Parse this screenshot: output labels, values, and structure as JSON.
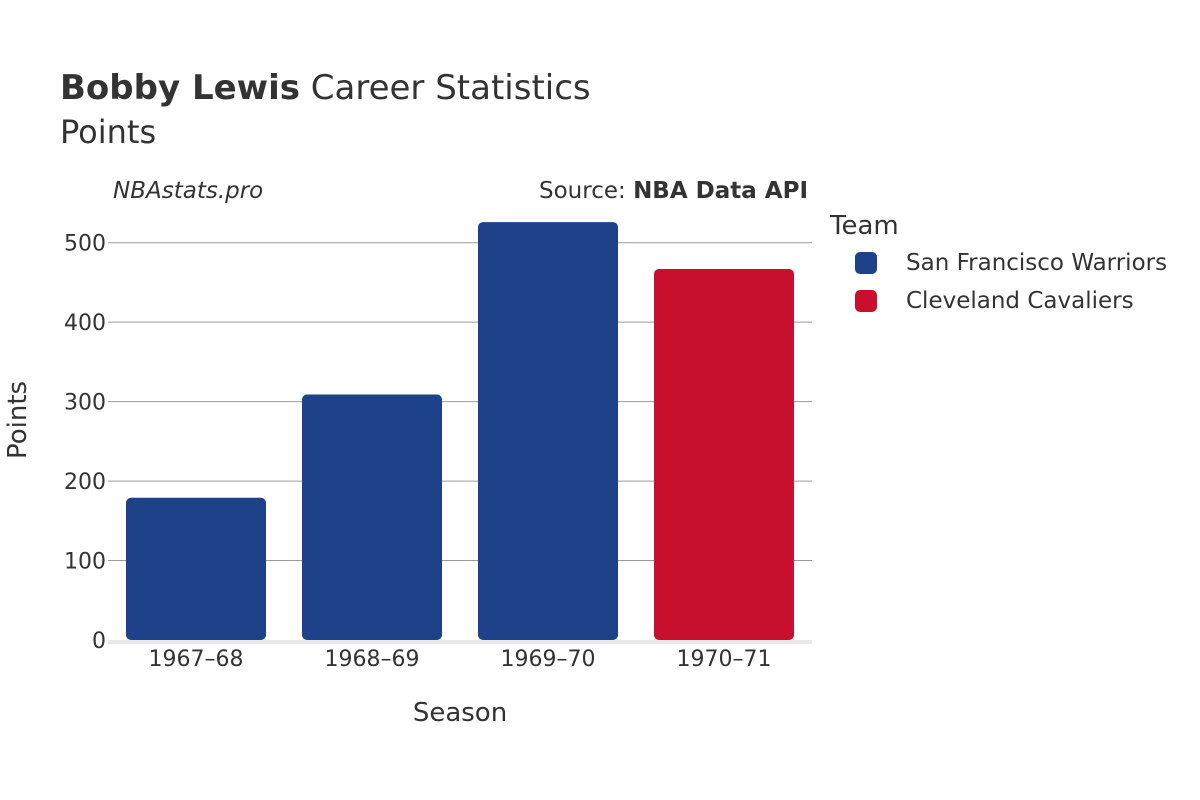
{
  "header": {
    "player_name": "Bobby Lewis",
    "title_suffix": " Career Statistics",
    "subtitle": "Points",
    "watermark": "NBAstats.pro",
    "source_prefix": "Source: ",
    "source_name": "NBA Data API"
  },
  "legend": {
    "title": "Team",
    "items": [
      {
        "label": "San Francisco Warriors",
        "color": "#1d428a"
      },
      {
        "label": "Cleveland Cavaliers",
        "color": "#c8102e"
      }
    ]
  },
  "chart_data": {
    "type": "bar",
    "categories": [
      "1967–68",
      "1968–69",
      "1969–70",
      "1970–71"
    ],
    "values": [
      179,
      309,
      526,
      467
    ],
    "teams": [
      "San Francisco Warriors",
      "San Francisco Warriors",
      "San Francisco Warriors",
      "Cleveland Cavaliers"
    ],
    "series": [
      {
        "name": "San Francisco Warriors",
        "values": [
          179,
          309,
          526,
          null
        ]
      },
      {
        "name": "Cleveland Cavaliers",
        "values": [
          null,
          null,
          null,
          467
        ]
      }
    ],
    "xlabel": "Season",
    "ylabel": "Points",
    "yticks": [
      0,
      100,
      200,
      300,
      400,
      500
    ],
    "ylim": [
      0,
      550
    ],
    "grid": true,
    "legend_position": "right"
  }
}
